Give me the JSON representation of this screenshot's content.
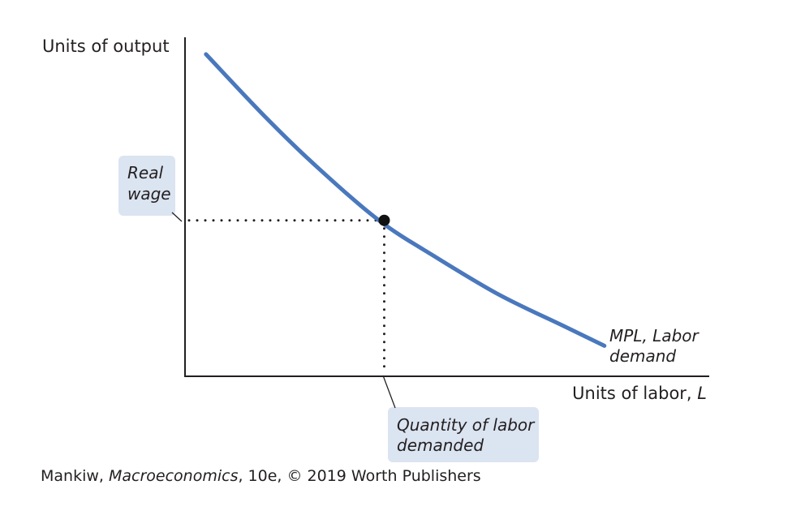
{
  "chart_data": {
    "type": "line",
    "ylabel": "Units of output",
    "xlabel": "Units of labor, ",
    "xlabel_var": "L",
    "series": [
      {
        "name": "MPL, Labor demand",
        "label_lines": [
          "MPL, Labor",
          "demand"
        ],
        "x": [
          0.04,
          0.15,
          0.25,
          0.37,
          0.48,
          0.6,
          0.72,
          0.8
        ],
        "y": [
          0.95,
          0.77,
          0.62,
          0.46,
          0.35,
          0.24,
          0.15,
          0.09
        ],
        "color": "#4a78bd"
      }
    ],
    "equilibrium": {
      "x": 0.38,
      "y": 0.46
    },
    "annotations": {
      "real_wage": [
        "Real",
        "wage"
      ],
      "quantity_demanded": [
        "Quantity of labor",
        "demanded"
      ]
    },
    "xlim": [
      0,
      1
    ],
    "ylim": [
      0,
      1
    ],
    "grid": false,
    "colors": {
      "curve": "#4a78bd",
      "callout_bg": "#dbe4f1",
      "axis": "#231f20"
    }
  },
  "credit": {
    "author": "Mankiw, ",
    "book": "Macroeconomics",
    "rest": ", 10e, © 2019 Worth Publishers"
  }
}
